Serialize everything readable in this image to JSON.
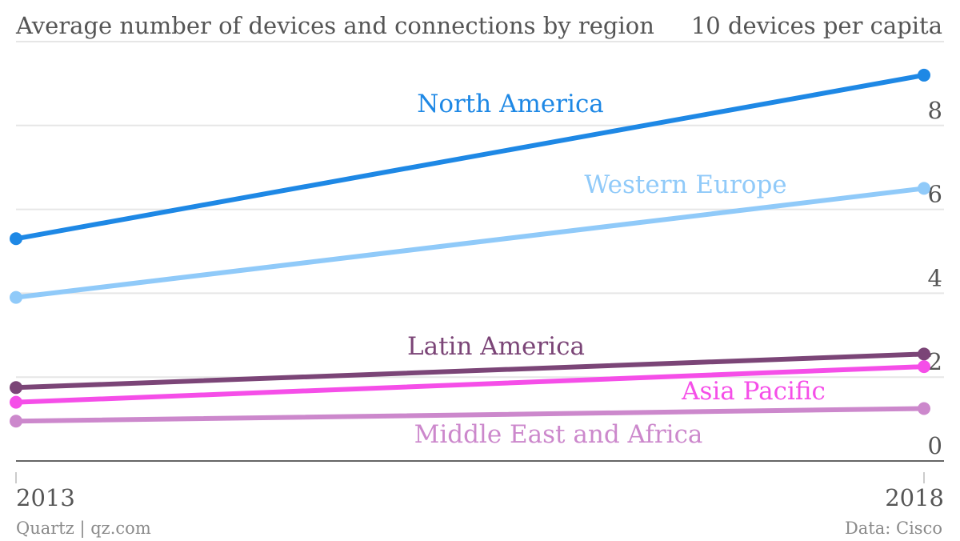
{
  "header": {
    "title": "Average number of devices and connections by region",
    "unit_note": "10 devices per capita"
  },
  "footer": {
    "source_left": "Quartz | qz.com",
    "source_right": "Data: Cisco"
  },
  "chart_data": {
    "type": "line",
    "title": "Average number of devices and connections by region",
    "xlabel": "",
    "ylabel": "devices per capita",
    "x": [
      "2013",
      "2018"
    ],
    "ylim": [
      0,
      10
    ],
    "yticks": [
      0,
      2,
      4,
      6,
      8,
      10
    ],
    "ytick_labels": [
      "0",
      "2",
      "4",
      "6",
      "8",
      ""
    ],
    "grid": true,
    "series": [
      {
        "name": "North America",
        "values": [
          5.3,
          9.2
        ],
        "color": "#1e88e5"
      },
      {
        "name": "Western Europe",
        "values": [
          3.9,
          6.5
        ],
        "color": "#90caf9"
      },
      {
        "name": "Latin America",
        "values": [
          1.75,
          2.55
        ],
        "color": "#7b4577"
      },
      {
        "name": "Asia Pacific",
        "values": [
          1.4,
          2.25
        ],
        "color": "#f54ee8"
      },
      {
        "name": "Middle East and Africa",
        "values": [
          0.95,
          1.25
        ],
        "color": "#cc88cc"
      }
    ]
  }
}
